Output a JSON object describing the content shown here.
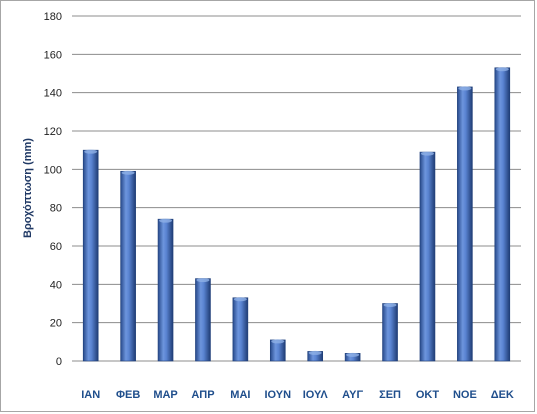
{
  "chart_data": {
    "type": "bar",
    "categories": [
      "ΙΑΝ",
      "ΦΕΒ",
      "ΜΑΡ",
      "ΑΠΡ",
      "ΜΑΙ",
      "ΙΟΥΝ",
      "ΙΟΥΛ",
      "ΑΥΓ",
      "ΣΕΠ",
      "ΟΚΤ",
      "ΝΟΕ",
      "ΔΕΚ"
    ],
    "values": [
      110,
      99,
      74,
      43,
      33,
      11,
      5,
      4,
      30,
      109,
      143,
      153
    ],
    "title": "",
    "xlabel": "",
    "ylabel": "Βροχόπτωση (mm)",
    "ylim": [
      0,
      180
    ],
    "yticks": [
      "0",
      "20",
      "40",
      "60",
      "80",
      "100",
      "120",
      "140",
      "160",
      "180"
    ],
    "grid": true,
    "legend": "none",
    "bar_color": "#4472c4",
    "bar_dark": "#1f3f7a",
    "bar_light": "#8fb0e6",
    "grid_color": "#8c8c8c"
  }
}
